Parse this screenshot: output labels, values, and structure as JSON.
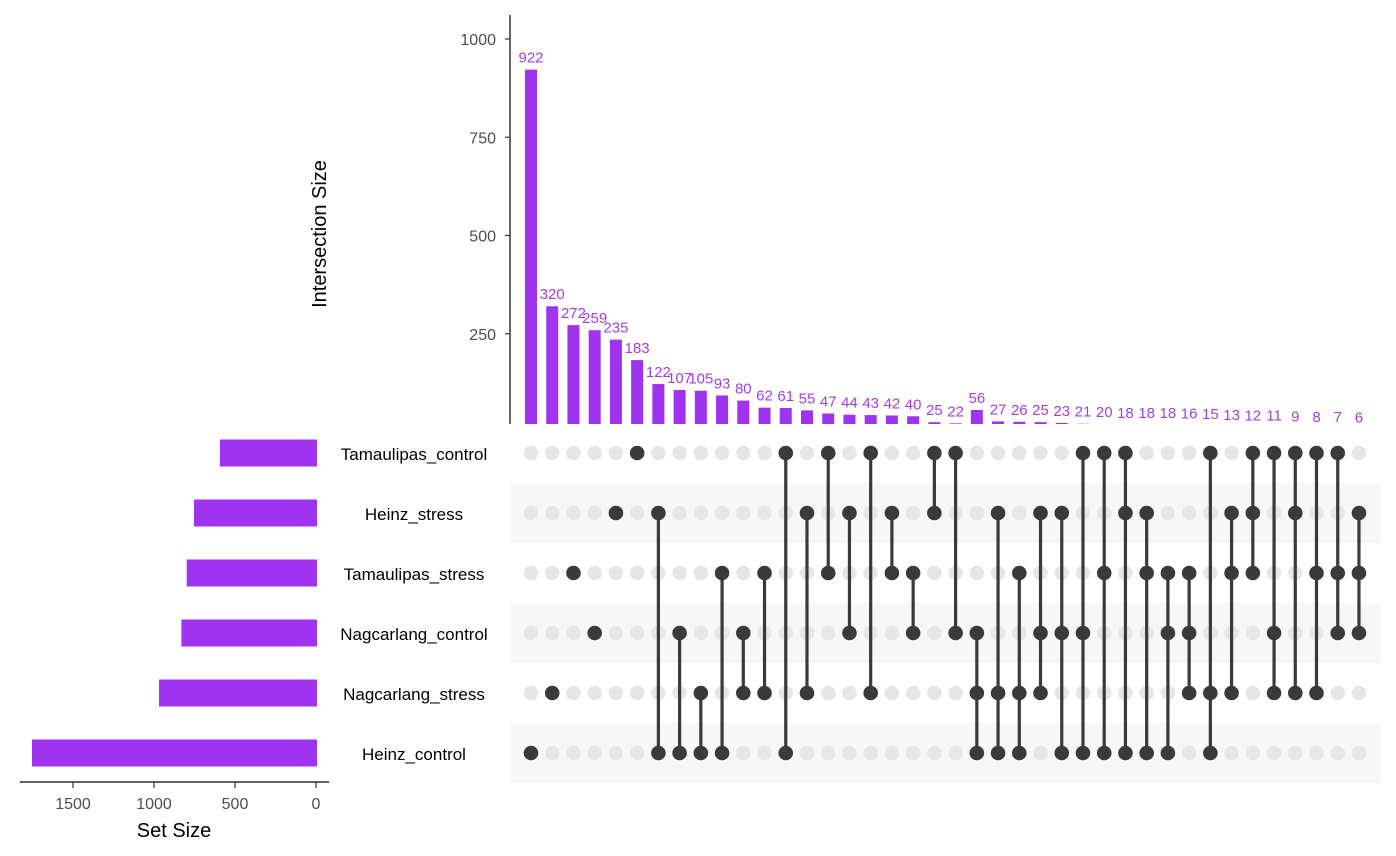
{
  "chart_data": {
    "type": "bar",
    "subtype": "upset",
    "colors": {
      "bar": "#a033f0",
      "bar_label": "#a33ee6",
      "dot_active": "#3a3a3a",
      "dot_inactive": "#e6e6e6",
      "row_shade": "#f7f7f7",
      "axis": "#000000",
      "tick_label": "#4d4d4d"
    },
    "intersection_axis": {
      "title": "Intersection Size",
      "ylim": [
        0,
        1000
      ],
      "ticks": [
        0,
        250,
        500,
        750,
        1000
      ],
      "tick_labels": [
        "0",
        "250",
        "500",
        "750",
        "1000"
      ]
    },
    "set_size_axis": {
      "title": "Set Size",
      "xlim": [
        1750,
        0
      ],
      "ticks": [
        1500,
        1000,
        500,
        0
      ],
      "tick_labels": [
        "1500",
        "1000",
        "500",
        "0"
      ]
    },
    "sets": [
      {
        "name": "Tamaulipas_control",
        "size": 593
      },
      {
        "name": "Heinz_stress",
        "size": 753
      },
      {
        "name": "Tamaulipas_stress",
        "size": 798
      },
      {
        "name": "Nagcarlang_control",
        "size": 831
      },
      {
        "name": "Nagcarlang_stress",
        "size": 969
      },
      {
        "name": "Heinz_control",
        "size": 1753
      }
    ],
    "intersections": [
      {
        "value": 922,
        "sets": [
          "Heinz_control"
        ]
      },
      {
        "value": 320,
        "sets": [
          "Nagcarlang_stress"
        ]
      },
      {
        "value": 272,
        "sets": [
          "Tamaulipas_stress"
        ]
      },
      {
        "value": 259,
        "sets": [
          "Nagcarlang_control"
        ]
      },
      {
        "value": 235,
        "sets": [
          "Heinz_stress"
        ]
      },
      {
        "value": 183,
        "sets": [
          "Tamaulipas_control"
        ]
      },
      {
        "value": 122,
        "sets": [
          "Heinz_stress",
          "Heinz_control"
        ]
      },
      {
        "value": 107,
        "sets": [
          "Nagcarlang_control",
          "Heinz_control"
        ]
      },
      {
        "value": 105,
        "sets": [
          "Nagcarlang_stress",
          "Heinz_control"
        ]
      },
      {
        "value": 93,
        "sets": [
          "Tamaulipas_stress",
          "Heinz_control"
        ]
      },
      {
        "value": 80,
        "sets": [
          "Nagcarlang_control",
          "Nagcarlang_stress"
        ]
      },
      {
        "value": 62,
        "sets": [
          "Tamaulipas_stress",
          "Nagcarlang_stress"
        ]
      },
      {
        "value": 61,
        "sets": [
          "Tamaulipas_control",
          "Heinz_control"
        ]
      },
      {
        "value": 55,
        "sets": [
          "Heinz_stress",
          "Nagcarlang_stress"
        ]
      },
      {
        "value": 47,
        "sets": [
          "Tamaulipas_control",
          "Tamaulipas_stress"
        ]
      },
      {
        "value": 44,
        "sets": [
          "Heinz_stress",
          "Nagcarlang_control"
        ]
      },
      {
        "value": 43,
        "sets": [
          "Tamaulipas_control",
          "Nagcarlang_stress"
        ]
      },
      {
        "value": 42,
        "sets": [
          "Heinz_stress",
          "Tamaulipas_stress"
        ]
      },
      {
        "value": 40,
        "sets": [
          "Tamaulipas_stress",
          "Nagcarlang_control"
        ]
      },
      {
        "value": 25,
        "sets": [
          "Tamaulipas_control",
          "Heinz_stress"
        ]
      },
      {
        "value": 22,
        "sets": [
          "Tamaulipas_control",
          "Nagcarlang_control"
        ]
      },
      {
        "value": 56,
        "sets": [
          "Nagcarlang_control",
          "Nagcarlang_stress",
          "Heinz_control"
        ]
      },
      {
        "value": 27,
        "sets": [
          "Heinz_stress",
          "Nagcarlang_stress",
          "Heinz_control"
        ]
      },
      {
        "value": 26,
        "sets": [
          "Tamaulipas_stress",
          "Nagcarlang_stress",
          "Heinz_control"
        ]
      },
      {
        "value": 25,
        "sets": [
          "Heinz_stress",
          "Nagcarlang_control",
          "Nagcarlang_stress"
        ]
      },
      {
        "value": 23,
        "sets": [
          "Heinz_stress",
          "Nagcarlang_control",
          "Heinz_control"
        ]
      },
      {
        "value": 21,
        "sets": [
          "Tamaulipas_control",
          "Nagcarlang_control",
          "Heinz_control"
        ]
      },
      {
        "value": 20,
        "sets": [
          "Tamaulipas_control",
          "Tamaulipas_stress",
          "Heinz_control"
        ]
      },
      {
        "value": 18,
        "sets": [
          "Tamaulipas_control",
          "Heinz_stress",
          "Heinz_control"
        ]
      },
      {
        "value": 18,
        "sets": [
          "Heinz_stress",
          "Tamaulipas_stress",
          "Heinz_control"
        ]
      },
      {
        "value": 18,
        "sets": [
          "Tamaulipas_stress",
          "Nagcarlang_control",
          "Heinz_control"
        ]
      },
      {
        "value": 16,
        "sets": [
          "Tamaulipas_stress",
          "Nagcarlang_control",
          "Nagcarlang_stress"
        ]
      },
      {
        "value": 15,
        "sets": [
          "Tamaulipas_control",
          "Nagcarlang_stress",
          "Heinz_control"
        ]
      },
      {
        "value": 13,
        "sets": [
          "Heinz_stress",
          "Tamaulipas_stress",
          "Nagcarlang_stress"
        ]
      },
      {
        "value": 12,
        "sets": [
          "Tamaulipas_control",
          "Heinz_stress",
          "Tamaulipas_stress"
        ]
      },
      {
        "value": 11,
        "sets": [
          "Tamaulipas_control",
          "Nagcarlang_control",
          "Nagcarlang_stress"
        ]
      },
      {
        "value": 9,
        "sets": [
          "Tamaulipas_control",
          "Heinz_stress",
          "Nagcarlang_stress"
        ]
      },
      {
        "value": 8,
        "sets": [
          "Tamaulipas_control",
          "Tamaulipas_stress",
          "Nagcarlang_stress"
        ]
      },
      {
        "value": 7,
        "sets": [
          "Tamaulipas_control",
          "Tamaulipas_stress",
          "Nagcarlang_control"
        ]
      },
      {
        "value": 6,
        "sets": [
          "Heinz_stress",
          "Tamaulipas_stress",
          "Nagcarlang_control"
        ]
      }
    ]
  }
}
